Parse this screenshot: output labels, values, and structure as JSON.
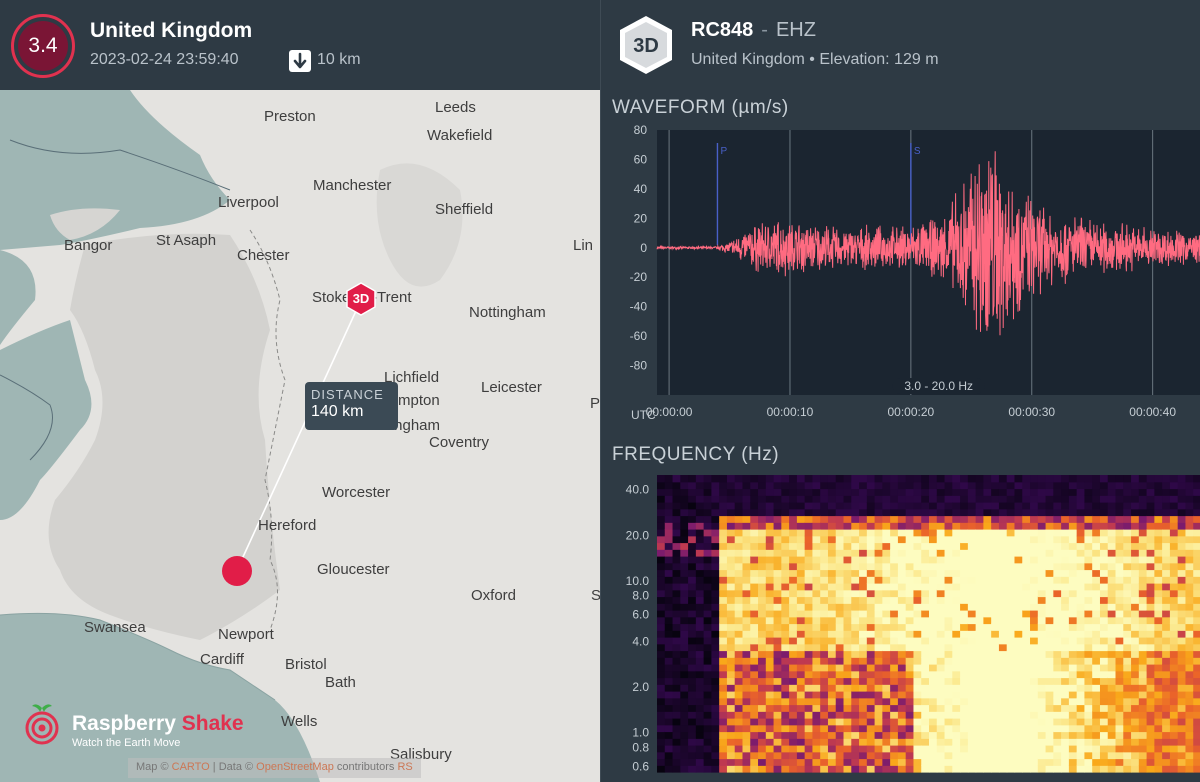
{
  "event": {
    "magnitude": "3.4",
    "region": "United Kingdom",
    "datetime": "2023-02-24 23:59:40",
    "depth": "10 km",
    "colors": {
      "magnitude_fill": "#7a1535",
      "magnitude_ring": "#e0324f"
    }
  },
  "map": {
    "cities": [
      {
        "name": "Preston"
      },
      {
        "name": "Leeds"
      },
      {
        "name": "Wakefield"
      },
      {
        "name": "Manchester"
      },
      {
        "name": "Liverpool"
      },
      {
        "name": "Sheffield"
      },
      {
        "name": "Bangor"
      },
      {
        "name": "St Asaph"
      },
      {
        "name": "Chester"
      },
      {
        "name": "Lin"
      },
      {
        "name": "Stoke-on-Trent"
      },
      {
        "name": "Nottingham"
      },
      {
        "name": "Lichfield"
      },
      {
        "name": "Leicester"
      },
      {
        "name": "mpton"
      },
      {
        "name": "Birmingham"
      },
      {
        "name": "Coventry"
      },
      {
        "name": "P"
      },
      {
        "name": "Worcester"
      },
      {
        "name": "Hereford"
      },
      {
        "name": "Gloucester"
      },
      {
        "name": "Oxford"
      },
      {
        "name": "S"
      },
      {
        "name": "Swansea"
      },
      {
        "name": "Newport"
      },
      {
        "name": "Cardiff"
      },
      {
        "name": "Bristol"
      },
      {
        "name": "Bath"
      },
      {
        "name": "Wells"
      },
      {
        "name": "Salisbury"
      }
    ],
    "distance_label": "DISTANCE",
    "distance_value": "140 km",
    "station_marker": "3D",
    "logo_name_part1": "Raspberry",
    "logo_name_part2": "Shake",
    "logo_tagline": "Watch the Earth Move",
    "attribution_prefix": "Map ©",
    "attribution_link1": "CARTO",
    "attribution_mid": "| Data ©",
    "attribution_link2": "OpenStreetMap",
    "attribution_suffix": "contributors",
    "attribution_link3": "RS"
  },
  "station": {
    "badge": "3D",
    "code": "RC848",
    "separator": "-",
    "channel": "EHZ",
    "location": "United Kingdom • Elevation: 129 m"
  },
  "waveform": {
    "title": "WAVEFORM (µm/s)",
    "filter_label": "3.0 - 20.0 Hz",
    "utc_label": "UTC",
    "color": "#ff6b81"
  },
  "frequency": {
    "title": "FREQUENCY (Hz)"
  },
  "chart_data": [
    {
      "type": "line",
      "title": "WAVEFORM (µm/s)",
      "xlabel": "UTC",
      "ylabel": "µm/s",
      "ylim": [
        -100,
        80
      ],
      "xlim_seconds": [
        -1,
        44
      ],
      "x_ticks": [
        "00:00:00",
        "00:00:10",
        "00:00:20",
        "00:00:30",
        "00:00:40"
      ],
      "y_ticks": [
        80,
        60,
        40,
        20,
        0,
        -20,
        -40,
        -60,
        -80
      ],
      "grid": "vertical",
      "phase_markers": [
        {
          "name": "P",
          "t": 4
        },
        {
          "name": "S",
          "t": 20
        }
      ],
      "envelope": {
        "t": [
          0,
          3.8,
          4.2,
          5,
          7,
          9,
          11,
          13,
          15,
          17,
          19,
          21,
          22,
          23,
          24,
          25,
          26,
          27,
          28,
          29,
          30,
          31,
          32,
          34,
          36,
          38,
          40,
          42,
          44
        ],
        "amplitude": [
          1,
          1,
          2,
          5,
          18,
          22,
          20,
          17,
          15,
          16,
          16,
          20,
          22,
          28,
          45,
          65,
          95,
          80,
          65,
          50,
          38,
          32,
          28,
          24,
          20,
          18,
          16,
          14,
          12
        ]
      },
      "annotation": "3.0 - 20.0 Hz"
    },
    {
      "type": "heatmap",
      "title": "FREQUENCY (Hz)",
      "ylabel": "Hz",
      "y_scale": "log",
      "ylim": [
        0.55,
        50
      ],
      "y_ticks": [
        40.0,
        20.0,
        10.0,
        8.0,
        6.0,
        4.0,
        2.0,
        1.0,
        0.8,
        0.6
      ],
      "xlim_seconds": [
        -1,
        44
      ],
      "onset_seconds": 4,
      "colormap": "inferno",
      "intensity_note": "low energy before 4 s; strong broadband energy 4-44 s, peaking 22-32 s"
    }
  ]
}
